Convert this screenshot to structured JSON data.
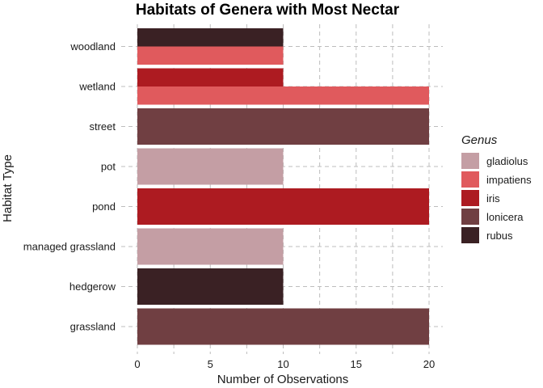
{
  "chart_data": {
    "type": "bar",
    "orientation": "horizontal",
    "layout": "dodged",
    "title": "Habitats of Genera with Most Nectar",
    "xlabel": "Number of Observations",
    "ylabel": "Habitat Type",
    "xlim": [
      0,
      20
    ],
    "xticks": [
      0,
      5,
      10,
      15,
      20
    ],
    "grid": true,
    "legend": {
      "title": "Genus",
      "position": "right"
    },
    "genera": [
      "gladiolus",
      "impatiens",
      "iris",
      "lonicera",
      "rubus"
    ],
    "colors": {
      "gladiolus": "#c49ea4",
      "impatiens": "#e05a5d",
      "iris": "#ad1b21",
      "lonicera": "#703f42",
      "rubus": "#3a2124"
    },
    "categories": [
      "woodland",
      "wetland",
      "street",
      "pot",
      "pond",
      "managed grassland",
      "hedgerow",
      "grassland"
    ],
    "bars": [
      {
        "habitat": "woodland",
        "genus": "rubus",
        "value": 10
      },
      {
        "habitat": "woodland",
        "genus": "impatiens",
        "value": 10
      },
      {
        "habitat": "wetland",
        "genus": "iris",
        "value": 10
      },
      {
        "habitat": "wetland",
        "genus": "impatiens",
        "value": 20
      },
      {
        "habitat": "street",
        "genus": "lonicera",
        "value": 20
      },
      {
        "habitat": "pot",
        "genus": "gladiolus",
        "value": 10
      },
      {
        "habitat": "pond",
        "genus": "iris",
        "value": 20
      },
      {
        "habitat": "managed grassland",
        "genus": "gladiolus",
        "value": 10
      },
      {
        "habitat": "hedgerow",
        "genus": "rubus",
        "value": 10
      },
      {
        "habitat": "grassland",
        "genus": "lonicera",
        "value": 20
      }
    ]
  }
}
